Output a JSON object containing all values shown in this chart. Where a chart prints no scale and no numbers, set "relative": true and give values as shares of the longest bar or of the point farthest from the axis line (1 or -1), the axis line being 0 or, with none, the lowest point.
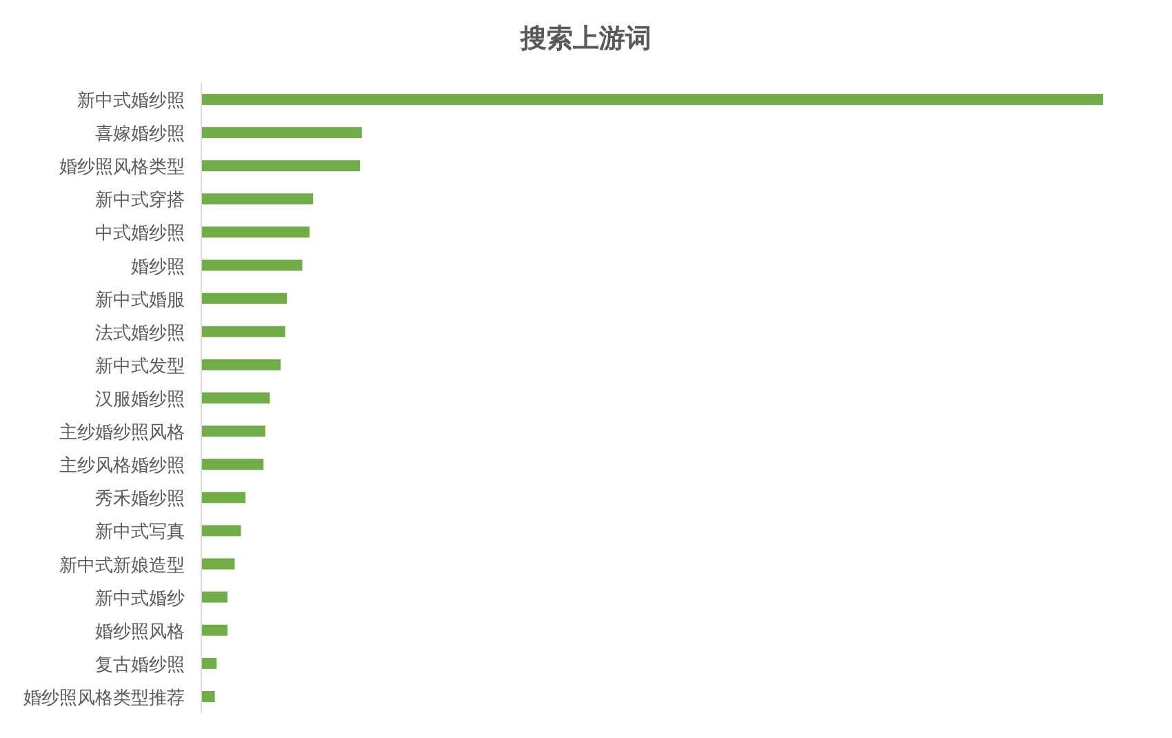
{
  "chart_data": {
    "type": "bar",
    "orientation": "horizontal",
    "relative": true,
    "title": "搜索上游词",
    "color": "#70ad47",
    "categories": [
      "新中式婚纱照",
      "喜嫁婚纱照",
      "婚纱照风格类型",
      "新中式穿搭",
      "中式婚纱照",
      "婚纱照",
      "新中式婚服",
      "法式婚纱照",
      "新中式发型",
      "汉服婚纱照",
      "主纱婚纱照风格",
      "主纱风格婚纱照",
      "秀禾婚纱照",
      "新中式写真",
      "新中式新娘造型",
      "新中式婚纱",
      "婚纱照风格",
      "复古婚纱照",
      "婚纱照风格类型推荐"
    ],
    "values": [
      1,
      0.178,
      0.176,
      0.124,
      0.12,
      0.112,
      0.095,
      0.093,
      0.088,
      0.076,
      0.071,
      0.069,
      0.049,
      0.044,
      0.037,
      0.029,
      0.029,
      0.017,
      0.015
    ]
  }
}
